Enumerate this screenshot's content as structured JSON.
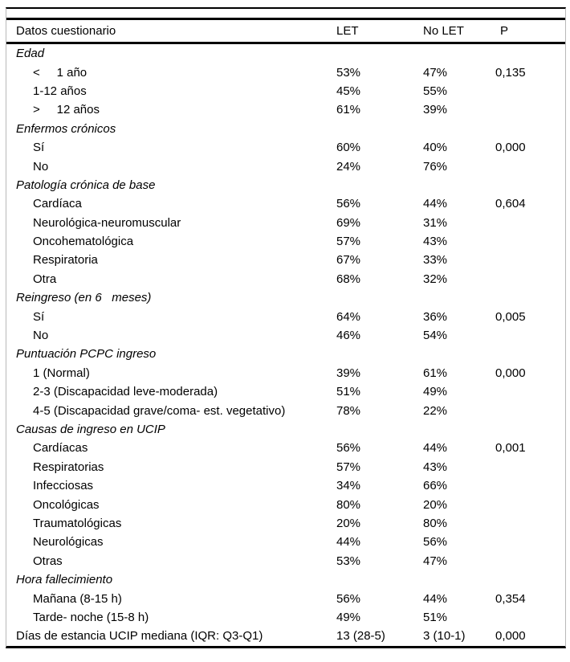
{
  "table": {
    "header": {
      "label": "Datos cuestionario",
      "let": "LET",
      "nolet": "No LET",
      "p": "P"
    },
    "rows": [
      {
        "type": "group",
        "label": "Edad",
        "let": "",
        "nolet": "",
        "p": ""
      },
      {
        "type": "item",
        "label": "<     1 año",
        "let": "53%",
        "nolet": "47%",
        "p": "0,135"
      },
      {
        "type": "item",
        "label": "1-12 años",
        "let": "45%",
        "nolet": "55%",
        "p": ""
      },
      {
        "type": "item",
        "label": ">     12 años",
        "let": "61%",
        "nolet": "39%",
        "p": ""
      },
      {
        "type": "group",
        "label": "Enfermos crónicos",
        "let": "",
        "nolet": "",
        "p": ""
      },
      {
        "type": "item",
        "label": "Sí",
        "let": "60%",
        "nolet": "40%",
        "p": "0,000"
      },
      {
        "type": "item",
        "label": "No",
        "let": "24%",
        "nolet": "76%",
        "p": ""
      },
      {
        "type": "group",
        "label": "Patología crónica de base",
        "let": "",
        "nolet": "",
        "p": ""
      },
      {
        "type": "item",
        "label": "Cardíaca",
        "let": "56%",
        "nolet": "44%",
        "p": "0,604"
      },
      {
        "type": "item",
        "label": "Neurológica-neuromuscular",
        "let": "69%",
        "nolet": "31%",
        "p": ""
      },
      {
        "type": "item",
        "label": "Oncohematológica",
        "let": "57%",
        "nolet": "43%",
        "p": ""
      },
      {
        "type": "item",
        "label": "Respiratoria",
        "let": "67%",
        "nolet": "33%",
        "p": ""
      },
      {
        "type": "item",
        "label": "Otra",
        "let": "68%",
        "nolet": "32%",
        "p": ""
      },
      {
        "type": "group",
        "label": "Reingreso (en 6   meses)",
        "let": "",
        "nolet": "",
        "p": ""
      },
      {
        "type": "item",
        "label": "Sí",
        "let": "64%",
        "nolet": "36%",
        "p": "0,005"
      },
      {
        "type": "item",
        "label": "No",
        "let": "46%",
        "nolet": "54%",
        "p": ""
      },
      {
        "type": "group",
        "label": "Puntuación PCPC ingreso",
        "let": "",
        "nolet": "",
        "p": ""
      },
      {
        "type": "item",
        "label": "1 (Normal)",
        "let": "39%",
        "nolet": "61%",
        "p": "0,000"
      },
      {
        "type": "item",
        "label": "2-3 (Discapacidad leve-moderada)",
        "let": "51%",
        "nolet": "49%",
        "p": ""
      },
      {
        "type": "item",
        "label": "4-5 (Discapacidad grave/coma- est. vegetativo)",
        "let": "78%",
        "nolet": "22%",
        "p": ""
      },
      {
        "type": "group",
        "label": "Causas de ingreso en UCIP",
        "let": "",
        "nolet": "",
        "p": ""
      },
      {
        "type": "item",
        "label": "Cardíacas",
        "let": "56%",
        "nolet": "44%",
        "p": "0,001"
      },
      {
        "type": "item",
        "label": "Respiratorias",
        "let": "57%",
        "nolet": "43%",
        "p": ""
      },
      {
        "type": "item",
        "label": "Infecciosas",
        "let": "34%",
        "nolet": "66%",
        "p": ""
      },
      {
        "type": "item",
        "label": "Oncológicas",
        "let": "80%",
        "nolet": "20%",
        "p": ""
      },
      {
        "type": "item",
        "label": "Traumatológicas",
        "let": "20%",
        "nolet": "80%",
        "p": ""
      },
      {
        "type": "item",
        "label": "Neurológicas",
        "let": "44%",
        "nolet": "56%",
        "p": ""
      },
      {
        "type": "item",
        "label": "Otras",
        "let": "53%",
        "nolet": "47%",
        "p": ""
      },
      {
        "type": "group",
        "label": "Hora fallecimiento",
        "let": "",
        "nolet": "",
        "p": ""
      },
      {
        "type": "item",
        "label": "Mañana (8-15 h)",
        "let": "56%",
        "nolet": "44%",
        "p": "0,354"
      },
      {
        "type": "item",
        "label": "Tarde- noche (15-8 h)",
        "let": "49%",
        "nolet": "51%",
        "p": ""
      },
      {
        "type": "plain",
        "label": "Días de estancia UCIP mediana (IQR: Q3-Q1)",
        "let": "13 (28-5)",
        "nolet": "3 (10-1)",
        "p": "0,000"
      }
    ]
  }
}
